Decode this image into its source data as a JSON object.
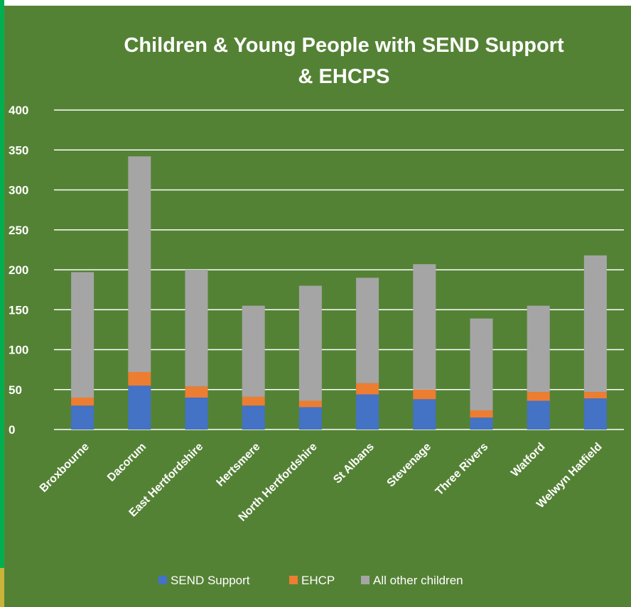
{
  "chart_data": {
    "type": "bar",
    "stacked": true,
    "title_lines": [
      "Children & Young People with SEND Support",
      "& EHCPS"
    ],
    "categories": [
      "Broxbourne",
      "Dacorum",
      "East Hertfordshire",
      "Hertsmere",
      "North Hertfordshire",
      "St Albans",
      "Stevenage",
      "Three Rivers",
      "Watford",
      "Welwyn Hatfield"
    ],
    "series": [
      {
        "name": "SEND Support",
        "color": "#4472c4",
        "values": [
          30,
          55,
          40,
          30,
          28,
          44,
          38,
          15,
          36,
          39
        ]
      },
      {
        "name": "EHCP",
        "color": "#ed7d31",
        "values": [
          10,
          17,
          14,
          11,
          8,
          14,
          12,
          9,
          11,
          8
        ]
      },
      {
        "name": "All other children",
        "color": "#a5a5a5",
        "values": [
          157,
          270,
          146,
          114,
          144,
          132,
          157,
          115,
          108,
          171
        ]
      }
    ],
    "ylim": [
      0,
      400
    ],
    "yticks": [
      0,
      50,
      100,
      150,
      200,
      250,
      300,
      350,
      400
    ],
    "grid": true,
    "legend_position": "bottom",
    "background": "#548235",
    "gridline_color": "#ffffff"
  }
}
